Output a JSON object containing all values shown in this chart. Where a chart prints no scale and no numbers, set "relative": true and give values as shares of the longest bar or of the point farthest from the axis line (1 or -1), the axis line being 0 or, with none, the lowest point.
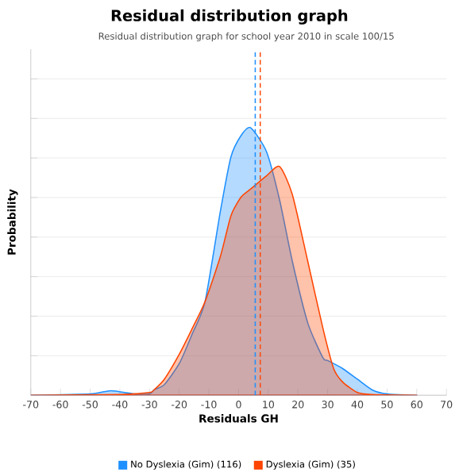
{
  "chart_data": {
    "type": "area",
    "title": "Residual distribution graph",
    "subtitle": "Residual distribution graph for school year 2010 in scale 100/15",
    "xlabel": "Residuals GH",
    "ylabel": "Probability",
    "relative": true,
    "grid": "y",
    "legend": "bottom",
    "xlim": [
      -70,
      70
    ],
    "xticks": [
      -70,
      -60,
      -50,
      -40,
      -30,
      -20,
      -10,
      0,
      10,
      20,
      30,
      40,
      50,
      60,
      70
    ],
    "line_style": "solid",
    "marker": "none",
    "series": [
      {
        "name": "No Dyslexia (Gim) (116)",
        "color": "#1e90ff",
        "x": [
          -70,
          -50,
          -43,
          -35,
          -30,
          -28.5,
          -25,
          -19.9,
          -15.6,
          -11.3,
          -6.1,
          -2.6,
          0.8,
          4,
          9.4,
          13.8,
          18.1,
          23.3,
          28.4,
          30,
          35,
          40,
          45,
          50,
          60
        ],
        "values": [
          0,
          0.005,
          0.017,
          0.005,
          0.005,
          0.02,
          0.04,
          0.12,
          0.23,
          0.35,
          0.69,
          0.89,
          0.97,
          1,
          0.91,
          0.73,
          0.5,
          0.27,
          0.14,
          0.13,
          0.1,
          0.06,
          0.02,
          0.005,
          0
        ]
      },
      {
        "name": "Dyslexia (Gim) (35)",
        "color": "#ff4500",
        "x": [
          -70,
          -40,
          -30,
          -28.5,
          -25,
          -19.9,
          -15.6,
          -11.3,
          -6.1,
          -2.6,
          0.8,
          4,
          9.4,
          13.8,
          18.1,
          23.3,
          28.4,
          32,
          35,
          40,
          45,
          60
        ],
        "values": [
          0,
          0.003,
          0.01,
          0.02,
          0.06,
          0.155,
          0.25,
          0.35,
          0.52,
          0.67,
          0.74,
          0.77,
          0.82,
          0.855,
          0.75,
          0.5,
          0.25,
          0.1,
          0.05,
          0.01,
          0.003,
          0
        ]
      }
    ],
    "ref_lines": [
      {
        "axis": "x",
        "value": 5.6,
        "color": "#1e90ff",
        "line_style": "dashed"
      },
      {
        "axis": "x",
        "value": 7.3,
        "color": "#ff4500",
        "line_style": "dashed"
      }
    ]
  }
}
